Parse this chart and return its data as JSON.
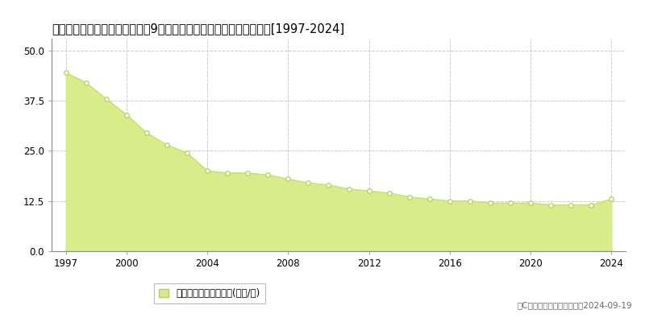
{
  "title": "大阪府豊能郡豊能町東ときわ台9丁目７番１８　基準地価　地価推移[1997-2024]",
  "years": [
    1997,
    1998,
    1999,
    2000,
    2001,
    2002,
    2003,
    2004,
    2005,
    2006,
    2007,
    2008,
    2009,
    2010,
    2011,
    2012,
    2013,
    2014,
    2015,
    2016,
    2017,
    2018,
    2019,
    2020,
    2021,
    2022,
    2023,
    2024
  ],
  "values": [
    44.5,
    42.0,
    38.0,
    34.0,
    29.5,
    26.5,
    24.5,
    20.0,
    19.5,
    19.5,
    19.0,
    18.0,
    17.0,
    16.5,
    15.5,
    15.0,
    14.5,
    13.5,
    13.0,
    12.5,
    12.5,
    12.0,
    12.0,
    12.0,
    11.5,
    11.5,
    11.5,
    13.0
  ],
  "line_color": "#c8e06e",
  "fill_color": "#d8ed8a",
  "marker_facecolor": "#ffffff",
  "marker_edgecolor": "#b8d050",
  "grid_color": "#cccccc",
  "bg_color": "#ffffff",
  "plot_bg_color": "#ffffff",
  "yticks": [
    0,
    12.5,
    25,
    37.5,
    50
  ],
  "ylim": [
    0,
    53
  ],
  "xlim": [
    1996.3,
    2024.7
  ],
  "xtick_positions": [
    1997,
    2000,
    2004,
    2008,
    2012,
    2016,
    2020,
    2024
  ],
  "xtick_labels": [
    "1997",
    "2000",
    "2004",
    "2008",
    "2012",
    "2016",
    "2020",
    "2024"
  ],
  "legend_label": "基準地価　平均坪単価(万円/坪)",
  "copyright_text": "（C）土地価格ドットコム　2024-09-19",
  "title_fontsize": 10.5,
  "axis_fontsize": 8.5,
  "legend_fontsize": 8.5,
  "copyright_fontsize": 7.5
}
